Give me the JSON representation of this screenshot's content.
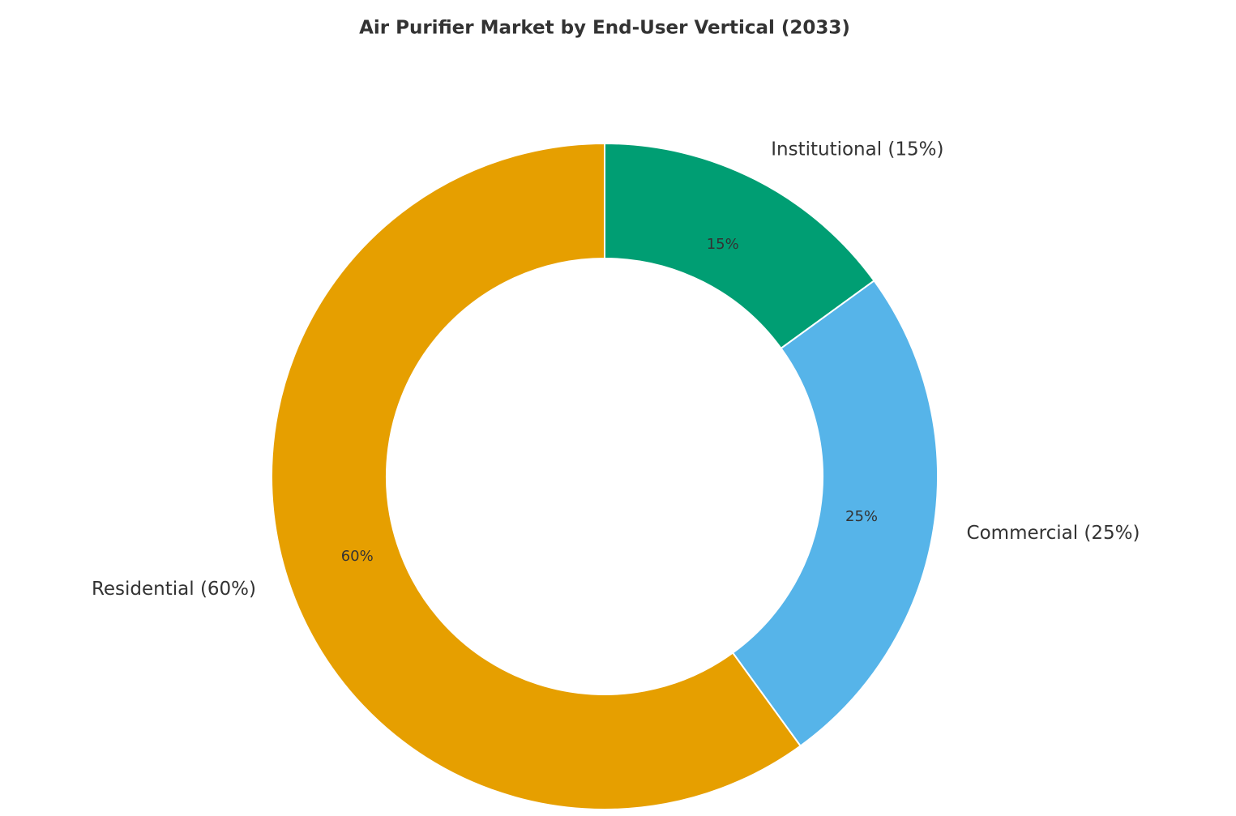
{
  "chart_data": {
    "type": "donut",
    "title": "Air Purifier Market by End-User Vertical (2033)",
    "categories": [
      "Institutional (15%)",
      "Commercial (25%)",
      "Residential (60%)"
    ],
    "values": [
      15,
      25,
      60
    ],
    "value_labels": [
      "15%",
      "25%",
      "60%"
    ],
    "colors": [
      "#009E73",
      "#56B4E9",
      "#E69F00"
    ]
  }
}
